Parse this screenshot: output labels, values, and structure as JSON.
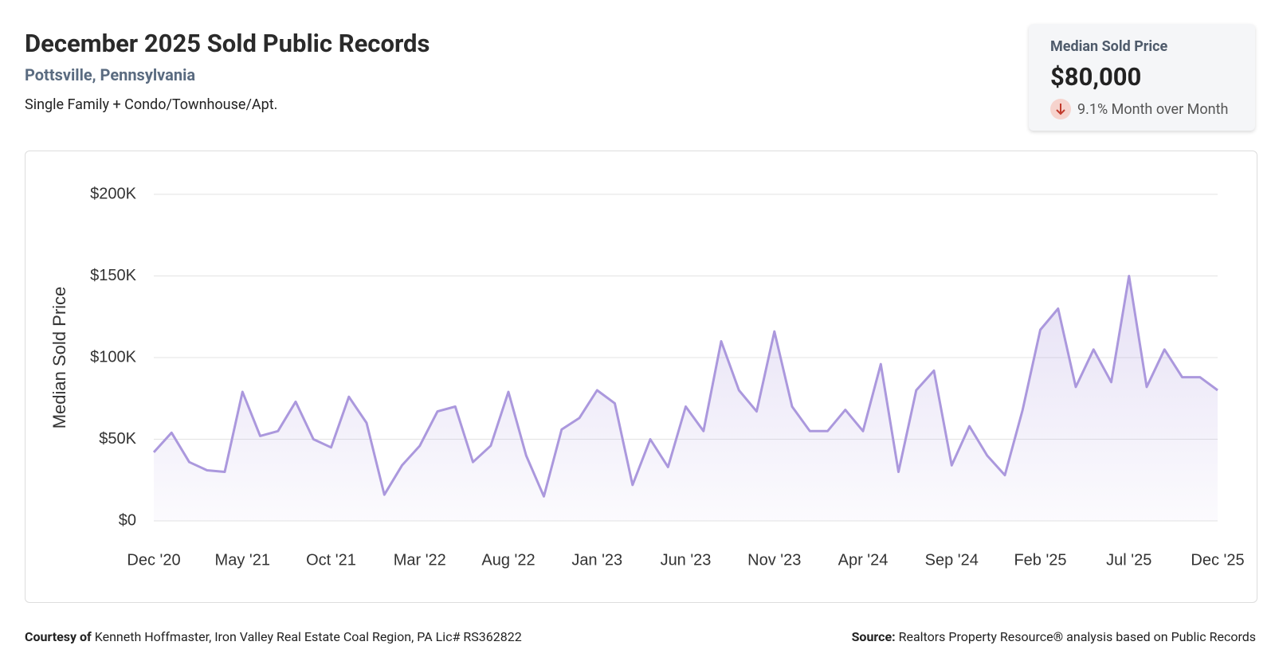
{
  "header": {
    "title": "December 2025 Sold Public Records",
    "location": "Pottsville, Pennsylvania",
    "property_types": "Single Family + Condo/Townhouse/Apt."
  },
  "summary": {
    "label": "Median Sold Price",
    "value": "$80,000",
    "change": "9.1% Month over Month"
  },
  "chart_data": {
    "type": "line",
    "y_label": "Median Sold Price",
    "categories": [
      "Dec '20",
      null,
      null,
      null,
      null,
      "May '21",
      null,
      null,
      null,
      null,
      "Oct '21",
      null,
      null,
      null,
      null,
      "Mar '22",
      null,
      null,
      null,
      null,
      "Aug '22",
      null,
      null,
      null,
      null,
      "Jan '23",
      null,
      null,
      null,
      null,
      "Jun '23",
      null,
      null,
      null,
      null,
      "Nov '23",
      null,
      null,
      null,
      null,
      "Apr '24",
      null,
      null,
      null,
      null,
      "Sep '24",
      null,
      null,
      null,
      null,
      "Feb '25",
      null,
      null,
      null,
      null,
      "Jul '25",
      null,
      null,
      null,
      null,
      "Dec '25"
    ],
    "series": [
      {
        "name": "Median Sold Price",
        "color": "#ab98dd",
        "values": [
          42000,
          54000,
          36000,
          31000,
          30000,
          79000,
          52000,
          55000,
          73000,
          50000,
          45000,
          76000,
          60000,
          16000,
          34000,
          46000,
          67000,
          70000,
          36000,
          46000,
          79000,
          40000,
          15000,
          56000,
          63000,
          80000,
          72000,
          22000,
          50000,
          33000,
          70000,
          55000,
          110000,
          80000,
          67000,
          116000,
          70000,
          55000,
          55000,
          68000,
          55000,
          96000,
          30000,
          80000,
          92000,
          34000,
          58000,
          40000,
          28000,
          68000,
          117000,
          130000,
          82000,
          105000,
          85000,
          150000,
          82000,
          105000,
          88000,
          88000,
          80000
        ]
      }
    ],
    "ylim": [
      0,
      200000
    ],
    "yticks": [
      {
        "value": 0,
        "label": "$0"
      },
      {
        "value": 50000,
        "label": "$50K"
      },
      {
        "value": 100000,
        "label": "$100K"
      },
      {
        "value": 150000,
        "label": "$150K"
      },
      {
        "value": 200000,
        "label": "$200K"
      }
    ],
    "grid": true
  },
  "footer": {
    "courtesy_label": "Courtesy of",
    "courtesy_text": "Kenneth Hoffmaster, Iron Valley Real Estate Coal Region, PA Lic# RS362822",
    "source_label": "Source:",
    "source_text": "Realtors Property Resource® analysis based on Public Records"
  }
}
